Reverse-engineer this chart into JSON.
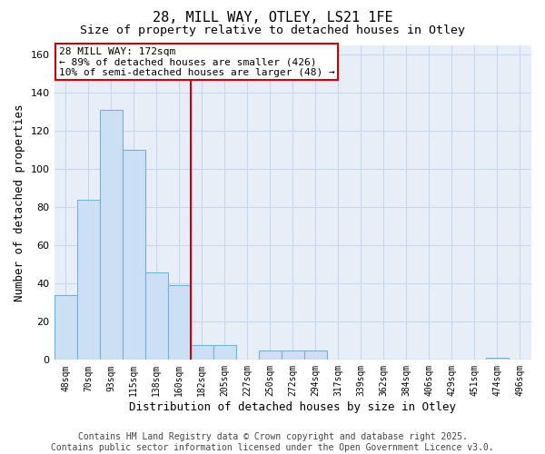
{
  "title_line1": "28, MILL WAY, OTLEY, LS21 1FE",
  "title_line2": "Size of property relative to detached houses in Otley",
  "xlabel": "Distribution of detached houses by size in Otley",
  "ylabel": "Number of detached properties",
  "categories": [
    "48sqm",
    "70sqm",
    "93sqm",
    "115sqm",
    "138sqm",
    "160sqm",
    "182sqm",
    "205sqm",
    "227sqm",
    "250sqm",
    "272sqm",
    "294sqm",
    "317sqm",
    "339sqm",
    "362sqm",
    "384sqm",
    "406sqm",
    "429sqm",
    "451sqm",
    "474sqm",
    "496sqm"
  ],
  "values": [
    34,
    84,
    131,
    110,
    46,
    39,
    8,
    8,
    0,
    5,
    5,
    5,
    0,
    0,
    0,
    0,
    0,
    0,
    0,
    1,
    0
  ],
  "bar_color": "#cce0f5",
  "bar_edge_color": "#7bafd4",
  "vline_x_index": 6,
  "vline_color": "#cc0000",
  "annotation_text": "28 MILL WAY: 172sqm\n← 89% of detached houses are smaller (426)\n10% of semi-detached houses are larger (48) →",
  "annotation_box_color": "white",
  "annotation_box_edge": "#cc0000",
  "ylim": [
    0,
    165
  ],
  "yticks": [
    0,
    20,
    40,
    60,
    80,
    100,
    120,
    140,
    160
  ],
  "grid_color": "#c8d8ec",
  "background_color": "#e8eef8",
  "footer_line1": "Contains HM Land Registry data © Crown copyright and database right 2025.",
  "footer_line2": "Contains public sector information licensed under the Open Government Licence v3.0.",
  "title_fontsize": 11,
  "subtitle_fontsize": 9.5,
  "tick_fontsize": 7,
  "label_fontsize": 9,
  "footer_fontsize": 7,
  "ann_fontsize": 8
}
